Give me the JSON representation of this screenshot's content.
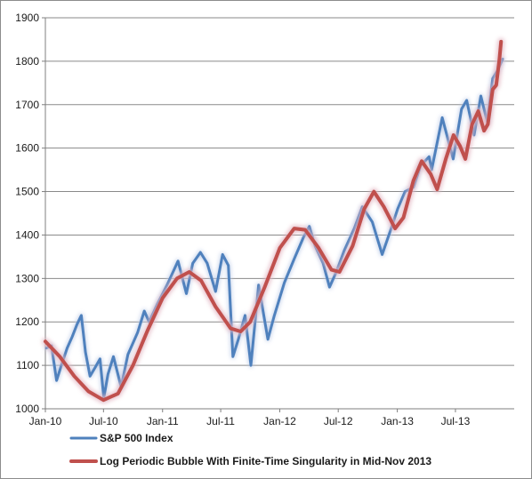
{
  "chart_data": {
    "type": "line",
    "ylim": [
      1000,
      1900
    ],
    "y_ticks": [
      1000,
      1100,
      1200,
      1300,
      1400,
      1500,
      1600,
      1700,
      1800,
      1900
    ],
    "xlim": [
      "2010-01-01",
      "2013-12-31"
    ],
    "x_ticks": [
      {
        "date": "2010-01-01",
        "label": "Jan-10"
      },
      {
        "date": "2010-07-01",
        "label": "Jul-10"
      },
      {
        "date": "2011-01-01",
        "label": "Jan-11"
      },
      {
        "date": "2011-07-01",
        "label": "Jul-11"
      },
      {
        "date": "2012-01-01",
        "label": "Jan-12"
      },
      {
        "date": "2012-07-01",
        "label": "Jul-12"
      },
      {
        "date": "2013-01-01",
        "label": "Jan-13"
      },
      {
        "date": "2013-07-01",
        "label": "Jul-13"
      }
    ],
    "grid": {
      "horizontal": true,
      "vertical": false
    },
    "legend": "bottom",
    "series": [
      {
        "name": "S&P 500 Index",
        "color": "#4f81bd",
        "points": [
          [
            "2010-01-04",
            1140
          ],
          [
            "2010-01-20",
            1145
          ],
          [
            "2010-02-05",
            1065
          ],
          [
            "2010-02-20",
            1100
          ],
          [
            "2010-03-10",
            1140
          ],
          [
            "2010-03-25",
            1165
          ],
          [
            "2010-04-10",
            1195
          ],
          [
            "2010-04-23",
            1215
          ],
          [
            "2010-05-06",
            1130
          ],
          [
            "2010-05-20",
            1075
          ],
          [
            "2010-06-05",
            1095
          ],
          [
            "2010-06-20",
            1115
          ],
          [
            "2010-07-02",
            1025
          ],
          [
            "2010-07-15",
            1080
          ],
          [
            "2010-08-01",
            1120
          ],
          [
            "2010-08-25",
            1050
          ],
          [
            "2010-09-15",
            1125
          ],
          [
            "2010-10-15",
            1175
          ],
          [
            "2010-11-05",
            1225
          ],
          [
            "2010-11-20",
            1200
          ],
          [
            "2010-12-15",
            1240
          ],
          [
            "2011-01-15",
            1285
          ],
          [
            "2011-02-18",
            1340
          ],
          [
            "2011-03-16",
            1265
          ],
          [
            "2011-04-05",
            1335
          ],
          [
            "2011-04-29",
            1360
          ],
          [
            "2011-05-20",
            1335
          ],
          [
            "2011-06-15",
            1270
          ],
          [
            "2011-07-07",
            1355
          ],
          [
            "2011-07-25",
            1330
          ],
          [
            "2011-08-08",
            1120
          ],
          [
            "2011-08-25",
            1160
          ],
          [
            "2011-09-15",
            1215
          ],
          [
            "2011-10-03",
            1100
          ],
          [
            "2011-10-27",
            1285
          ],
          [
            "2011-11-25",
            1160
          ],
          [
            "2011-12-15",
            1215
          ],
          [
            "2012-01-15",
            1290
          ],
          [
            "2012-02-15",
            1345
          ],
          [
            "2012-03-15",
            1395
          ],
          [
            "2012-04-02",
            1420
          ],
          [
            "2012-04-20",
            1375
          ],
          [
            "2012-05-15",
            1335
          ],
          [
            "2012-06-04",
            1280
          ],
          [
            "2012-06-25",
            1315
          ],
          [
            "2012-07-20",
            1365
          ],
          [
            "2012-08-20",
            1415
          ],
          [
            "2012-09-14",
            1465
          ],
          [
            "2012-10-15",
            1430
          ],
          [
            "2012-11-15",
            1355
          ],
          [
            "2012-12-15",
            1420
          ],
          [
            "2013-01-02",
            1460
          ],
          [
            "2013-01-25",
            1500
          ],
          [
            "2013-02-20",
            1510
          ],
          [
            "2013-03-15",
            1560
          ],
          [
            "2013-04-10",
            1580
          ],
          [
            "2013-04-18",
            1550
          ],
          [
            "2013-05-21",
            1670
          ],
          [
            "2013-06-24",
            1575
          ],
          [
            "2013-07-20",
            1690
          ],
          [
            "2013-08-05",
            1710
          ],
          [
            "2013-08-28",
            1630
          ],
          [
            "2013-09-18",
            1720
          ],
          [
            "2013-10-08",
            1660
          ],
          [
            "2013-10-25",
            1760
          ],
          [
            "2013-11-10",
            1780
          ],
          [
            "2013-11-25",
            1805
          ]
        ]
      },
      {
        "name": "Log Periodic Bubble With Finite-Time Singularity in Mid-Nov 2013",
        "color": "#c0504d",
        "points": [
          [
            "2010-01-01",
            1155
          ],
          [
            "2010-02-15",
            1120
          ],
          [
            "2010-04-01",
            1075
          ],
          [
            "2010-05-15",
            1040
          ],
          [
            "2010-07-01",
            1020
          ],
          [
            "2010-08-15",
            1035
          ],
          [
            "2010-10-01",
            1100
          ],
          [
            "2010-11-15",
            1180
          ],
          [
            "2011-01-01",
            1255
          ],
          [
            "2011-02-15",
            1300
          ],
          [
            "2011-03-25",
            1315
          ],
          [
            "2011-05-01",
            1295
          ],
          [
            "2011-06-15",
            1235
          ],
          [
            "2011-08-01",
            1185
          ],
          [
            "2011-09-01",
            1178
          ],
          [
            "2011-10-01",
            1200
          ],
          [
            "2011-11-15",
            1280
          ],
          [
            "2012-01-01",
            1370
          ],
          [
            "2012-02-15",
            1415
          ],
          [
            "2012-03-20",
            1412
          ],
          [
            "2012-05-01",
            1370
          ],
          [
            "2012-06-10",
            1320
          ],
          [
            "2012-07-05",
            1315
          ],
          [
            "2012-08-15",
            1375
          ],
          [
            "2012-09-20",
            1460
          ],
          [
            "2012-10-20",
            1500
          ],
          [
            "2012-11-20",
            1465
          ],
          [
            "2012-12-25",
            1415
          ],
          [
            "2013-01-20",
            1440
          ],
          [
            "2013-02-20",
            1525
          ],
          [
            "2013-03-18",
            1570
          ],
          [
            "2013-04-15",
            1540
          ],
          [
            "2013-05-05",
            1505
          ],
          [
            "2013-06-01",
            1575
          ],
          [
            "2013-06-25",
            1630
          ],
          [
            "2013-07-15",
            1605
          ],
          [
            "2013-08-01",
            1575
          ],
          [
            "2013-08-22",
            1655
          ],
          [
            "2013-09-10",
            1685
          ],
          [
            "2013-09-28",
            1640
          ],
          [
            "2013-10-10",
            1655
          ],
          [
            "2013-10-25",
            1735
          ],
          [
            "2013-11-05",
            1745
          ],
          [
            "2013-11-15",
            1805
          ],
          [
            "2013-11-20",
            1845
          ]
        ]
      }
    ]
  }
}
